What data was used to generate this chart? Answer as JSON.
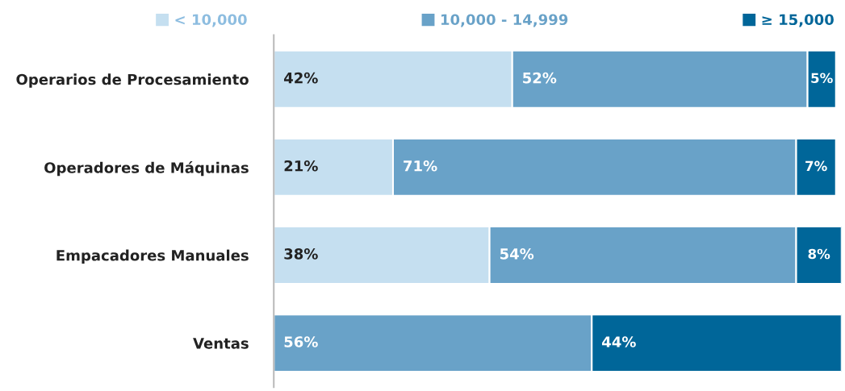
{
  "chart_data": {
    "type": "bar",
    "orientation": "horizontal",
    "stacked": true,
    "categories": [
      "Operarios de Procesamiento",
      "Operadores de Máquinas",
      "Empacadores Manuales",
      "Ventas"
    ],
    "series": [
      {
        "name": "< 10,000",
        "color": "#c5dff0",
        "values": [
          42,
          21,
          38,
          null
        ],
        "value_labels": [
          "42%",
          "21%",
          "38%",
          null
        ]
      },
      {
        "name": "10,000 - 14,999",
        "color": "#69a2c8",
        "values": [
          52,
          71,
          54,
          56
        ],
        "value_labels": [
          "52%",
          "71%",
          "54%",
          "56%"
        ]
      },
      {
        "name": "≥ 15,000",
        "color": "#006699",
        "values": [
          5,
          7,
          8,
          44
        ],
        "value_labels": [
          "5%",
          "7%",
          "8%",
          "44%"
        ]
      }
    ],
    "xlim": [
      0,
      100
    ],
    "tick_labels": "y",
    "legend": "top",
    "grid": false
  }
}
